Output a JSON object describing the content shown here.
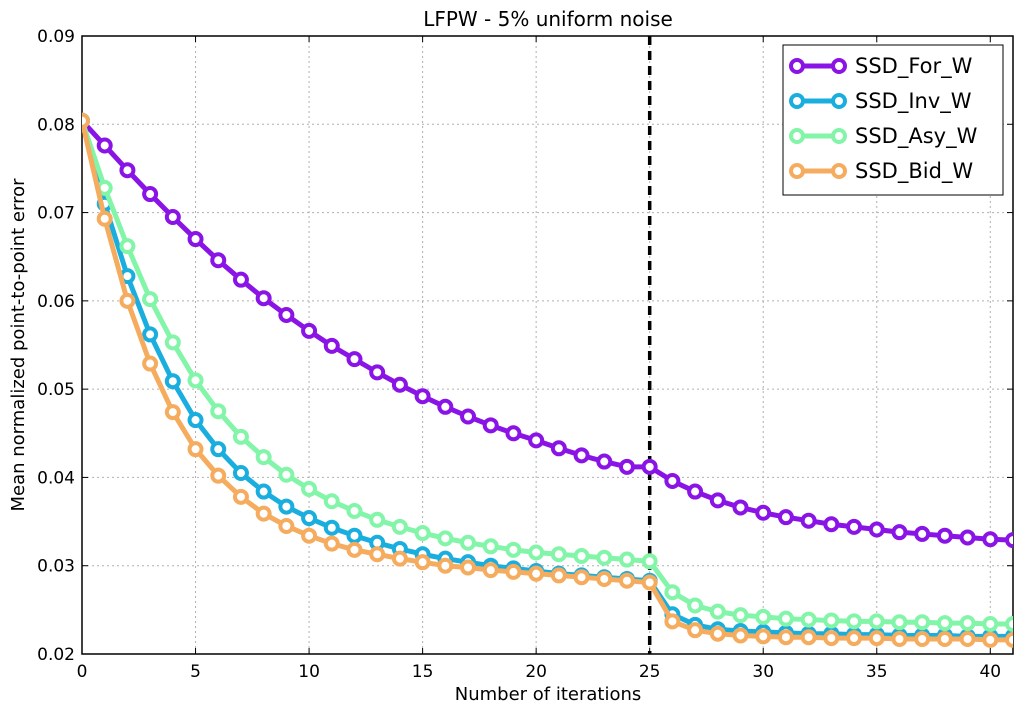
{
  "chart_data": {
    "type": "line",
    "title": "LFPW - 5% uniform noise",
    "xlabel": "Number of iterations",
    "ylabel": "Mean normalized point-to-point error",
    "xlim": [
      0,
      41
    ],
    "ylim": [
      0.02,
      0.09
    ],
    "xticks": [
      0,
      5,
      10,
      15,
      20,
      25,
      30,
      35,
      40
    ],
    "yticks": [
      0.02,
      0.03,
      0.04,
      0.05,
      0.06,
      0.07,
      0.08,
      0.09
    ],
    "xtick_labels": [
      "0",
      "5",
      "10",
      "15",
      "20",
      "25",
      "30",
      "35",
      "40"
    ],
    "ytick_labels": [
      "0.02",
      "0.03",
      "0.04",
      "0.05",
      "0.06",
      "0.07",
      "0.08",
      "0.09"
    ],
    "grid": true,
    "legend_position": "top-right",
    "vline": {
      "x": 25,
      "style": "dashed",
      "color": "#000000"
    },
    "x": [
      0,
      1,
      2,
      3,
      4,
      5,
      6,
      7,
      8,
      9,
      10,
      11,
      12,
      13,
      14,
      15,
      16,
      17,
      18,
      19,
      20,
      21,
      22,
      23,
      24,
      25,
      26,
      27,
      28,
      29,
      30,
      31,
      32,
      33,
      34,
      35,
      36,
      37,
      38,
      39,
      40,
      41
    ],
    "series": [
      {
        "name": "SSD_For_W",
        "color": "#8a14e6",
        "values": [
          0.0804,
          0.0776,
          0.0748,
          0.0721,
          0.0695,
          0.067,
          0.0646,
          0.0624,
          0.0603,
          0.0584,
          0.0566,
          0.0549,
          0.0534,
          0.0519,
          0.0505,
          0.0492,
          0.048,
          0.0469,
          0.0459,
          0.045,
          0.0442,
          0.0433,
          0.0425,
          0.0418,
          0.0412,
          0.0412,
          0.0396,
          0.0384,
          0.0374,
          0.0366,
          0.036,
          0.0355,
          0.0351,
          0.0347,
          0.0344,
          0.0341,
          0.0338,
          0.0336,
          0.0334,
          0.0332,
          0.033,
          0.0329
        ]
      },
      {
        "name": "SSD_Inv_W",
        "color": "#1aaedf",
        "values": [
          0.0804,
          0.071,
          0.0628,
          0.0562,
          0.0509,
          0.0465,
          0.0432,
          0.0405,
          0.0384,
          0.0367,
          0.0354,
          0.0343,
          0.0334,
          0.0326,
          0.0319,
          0.0313,
          0.0308,
          0.0304,
          0.03,
          0.0297,
          0.0294,
          0.0291,
          0.0289,
          0.0287,
          0.0285,
          0.0283,
          0.0245,
          0.0233,
          0.0228,
          0.0226,
          0.0225,
          0.0224,
          0.0223,
          0.0223,
          0.0222,
          0.0222,
          0.0221,
          0.0221,
          0.0221,
          0.022,
          0.022,
          0.022
        ]
      },
      {
        "name": "SSD_Asy_W",
        "color": "#82f5a8",
        "values": [
          0.0804,
          0.0728,
          0.0662,
          0.0602,
          0.0553,
          0.051,
          0.0475,
          0.0446,
          0.0423,
          0.0403,
          0.0387,
          0.0373,
          0.0362,
          0.0352,
          0.0344,
          0.0337,
          0.0331,
          0.0326,
          0.0322,
          0.0318,
          0.0315,
          0.0313,
          0.0311,
          0.0309,
          0.0307,
          0.0305,
          0.027,
          0.0255,
          0.0248,
          0.0244,
          0.0242,
          0.024,
          0.0239,
          0.0238,
          0.0237,
          0.0237,
          0.0236,
          0.0236,
          0.0235,
          0.0235,
          0.0234,
          0.0234
        ]
      },
      {
        "name": "SSD_Bid_W",
        "color": "#f5ac5e",
        "values": [
          0.0804,
          0.0693,
          0.06,
          0.0529,
          0.0474,
          0.0432,
          0.0402,
          0.0378,
          0.0359,
          0.0345,
          0.0334,
          0.0325,
          0.0318,
          0.0313,
          0.0308,
          0.0304,
          0.03,
          0.0298,
          0.0295,
          0.0293,
          0.0291,
          0.0289,
          0.0287,
          0.0285,
          0.0283,
          0.0281,
          0.0237,
          0.0227,
          0.0223,
          0.0221,
          0.022,
          0.0219,
          0.0219,
          0.0218,
          0.0218,
          0.0218,
          0.0217,
          0.0217,
          0.0217,
          0.0217,
          0.0216,
          0.0216
        ]
      }
    ]
  }
}
